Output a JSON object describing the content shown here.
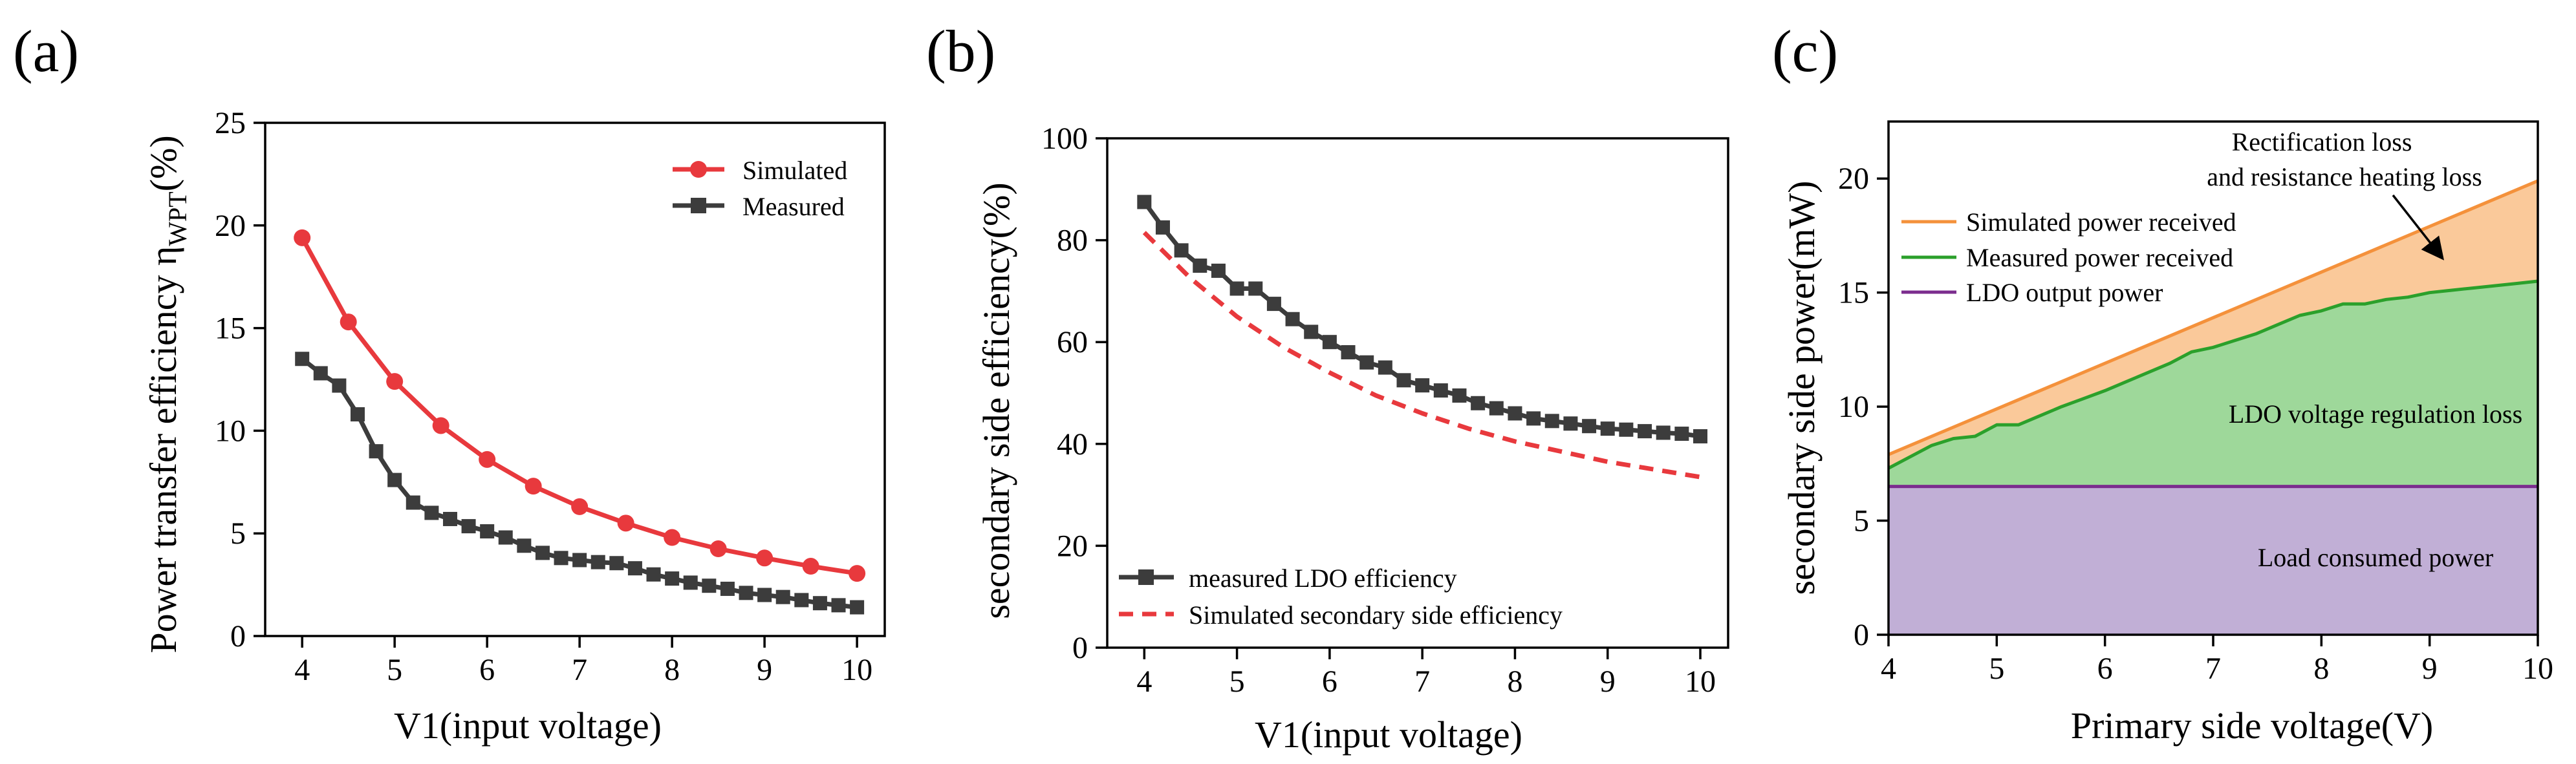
{
  "chart_data": [
    {
      "panel_label": "(a)",
      "type": "line",
      "xlabel": "V1(input voltage)",
      "ylabel_main": "Power transfer efficiency η",
      "ylabel_sub": "WPT",
      "ylabel_tail": "(%)",
      "xlim": [
        3.6,
        10.3
      ],
      "ylim": [
        0,
        25
      ],
      "xticks": [
        4,
        5,
        6,
        7,
        8,
        9,
        10
      ],
      "yticks": [
        0,
        5,
        10,
        15,
        20,
        25
      ],
      "legend_position": "top-right",
      "series": [
        {
          "name": "Simulated",
          "color": "#e8393d",
          "marker": "circle",
          "x": [
            4,
            4.5,
            5,
            5.5,
            6,
            6.5,
            7,
            7.5,
            8,
            8.5,
            9,
            9.5,
            10
          ],
          "y": [
            19.4,
            15.3,
            12.4,
            10.25,
            8.6,
            7.3,
            6.3,
            5.5,
            4.8,
            4.25,
            3.8,
            3.4,
            3.05
          ]
        },
        {
          "name": "Measured",
          "color": "#3c3c3c",
          "marker": "square",
          "x": [
            4,
            4.2,
            4.4,
            4.6,
            4.8,
            5,
            5.2,
            5.4,
            5.6,
            5.8,
            6,
            6.2,
            6.4,
            6.6,
            6.8,
            7,
            7.2,
            7.4,
            7.6,
            7.8,
            8,
            8.2,
            8.4,
            8.6,
            8.8,
            9,
            9.2,
            9.4,
            9.6,
            9.8,
            10
          ],
          "y": [
            13.5,
            12.8,
            12.2,
            10.8,
            9.0,
            7.6,
            6.5,
            6.0,
            5.7,
            5.35,
            5.1,
            4.8,
            4.4,
            4.05,
            3.8,
            3.7,
            3.6,
            3.55,
            3.3,
            3.0,
            2.8,
            2.6,
            2.45,
            2.3,
            2.1,
            2.0,
            1.9,
            1.75,
            1.6,
            1.5,
            1.4
          ]
        }
      ]
    },
    {
      "panel_label": "(b)",
      "type": "line",
      "xlabel": "V1(input voltage)",
      "ylabel": "secondary side efficiency(%)",
      "xlim": [
        3.6,
        10.3
      ],
      "ylim": [
        0,
        100
      ],
      "xticks": [
        4,
        5,
        6,
        7,
        8,
        9,
        10
      ],
      "yticks": [
        0,
        20,
        40,
        60,
        80,
        100
      ],
      "legend_position": "bottom-left",
      "series": [
        {
          "name": "measured LDO efficiency",
          "color": "#3c3c3c",
          "marker": "square",
          "x": [
            4,
            4.2,
            4.4,
            4.6,
            4.8,
            5,
            5.2,
            5.4,
            5.6,
            5.8,
            6,
            6.2,
            6.4,
            6.6,
            6.8,
            7,
            7.2,
            7.4,
            7.6,
            7.8,
            8,
            8.2,
            8.4,
            8.6,
            8.8,
            9,
            9.2,
            9.4,
            9.6,
            9.8,
            10
          ],
          "y": [
            87.5,
            82.5,
            78,
            75,
            74,
            70.5,
            70.5,
            67.5,
            64.5,
            62,
            60,
            58,
            56,
            55,
            52.5,
            51.5,
            50.5,
            49.5,
            48,
            47,
            46,
            45,
            44.5,
            44,
            43.5,
            43,
            42.8,
            42.5,
            42.2,
            42,
            41.5
          ]
        },
        {
          "name": "Simulated secondary side efficiency",
          "color": "#e8393d",
          "dash": true,
          "x": [
            4,
            4.5,
            5,
            5.5,
            6,
            6.5,
            7,
            7.5,
            8,
            8.5,
            9,
            9.5,
            10
          ],
          "y": [
            81.5,
            72.5,
            65,
            59,
            54,
            49.5,
            46,
            43,
            40.5,
            38.5,
            36.5,
            35,
            33.5
          ]
        }
      ]
    },
    {
      "panel_label": "(c)",
      "type": "area",
      "xlabel": "Primary side voltage(V)",
      "ylabel": "secondary side power(mW)",
      "xlim": [
        4,
        10
      ],
      "ylim": [
        0,
        22.5
      ],
      "xticks": [
        4,
        5,
        6,
        7,
        8,
        9,
        10
      ],
      "yticks": [
        0,
        5,
        10,
        15,
        20
      ],
      "legend_position": "top-left",
      "series": [
        {
          "name": "Simulated power received",
          "color": "#f4913b",
          "fill": "#fac99a",
          "x": [
            4,
            10
          ],
          "y": [
            7.9,
            19.9
          ]
        },
        {
          "name": "Measured power received",
          "color": "#2ba02b",
          "fill": "#9ed89a",
          "x": [
            4,
            4.2,
            4.4,
            4.6,
            4.8,
            5,
            5.2,
            5.4,
            5.6,
            5.8,
            6,
            6.2,
            6.4,
            6.6,
            6.8,
            7,
            7.2,
            7.4,
            7.6,
            7.8,
            8,
            8.2,
            8.4,
            8.6,
            8.8,
            9,
            9.2,
            9.4,
            9.6,
            9.8,
            10
          ],
          "y": [
            7.3,
            7.8,
            8.3,
            8.6,
            8.7,
            9.2,
            9.2,
            9.6,
            10.0,
            10.35,
            10.7,
            11.1,
            11.5,
            11.9,
            12.4,
            12.6,
            12.9,
            13.2,
            13.6,
            14.0,
            14.2,
            14.5,
            14.5,
            14.7,
            14.8,
            15.0,
            15.1,
            15.2,
            15.3,
            15.4,
            15.5
          ]
        },
        {
          "name": "LDO output power",
          "color": "#7b2d8e",
          "fill": "#c1afd6",
          "x": [
            4,
            10
          ],
          "y": [
            6.5,
            6.5
          ]
        }
      ],
      "annotations": [
        {
          "text_lines": [
            "Rectification loss",
            "and resistance heating loss"
          ],
          "arrow_to": [
            9.0,
            16.4
          ]
        },
        {
          "text": "LDO voltage regulation loss",
          "at": [
            8.5,
            9.3
          ]
        },
        {
          "text": "Load consumed power",
          "at": [
            8.5,
            3.0
          ]
        }
      ]
    }
  ]
}
